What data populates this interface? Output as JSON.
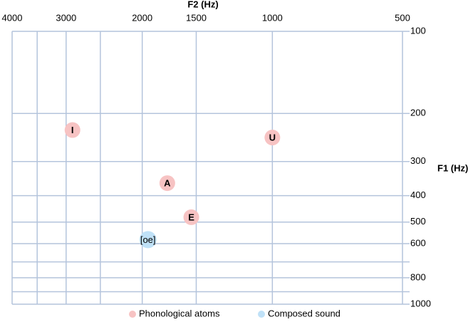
{
  "chart_data": {
    "type": "scatter",
    "x_label": "F2 (Hz)",
    "y_label": "F1 (Hz)",
    "x_log": true,
    "y_log": true,
    "x_reversed": true,
    "y_reversed": true,
    "xlim": [
      4000,
      500
    ],
    "ylim": [
      100,
      1000
    ],
    "xticks": [
      4000,
      3000,
      2000,
      1500,
      1000,
      500
    ],
    "x_minor_ticks": [
      3500,
      2500
    ],
    "yticks": [
      100,
      200,
      300,
      400,
      500,
      600,
      800,
      1000
    ],
    "y_minor_ticks": [
      700,
      900
    ],
    "grid": true,
    "legend": "bottom",
    "series": [
      {
        "name": "Phonological atoms",
        "color": "#f7c3c3",
        "x": [
          2900,
          1000,
          1750,
          1540
        ],
        "values": [
          230,
          245,
          360,
          480
        ],
        "point_labels": [
          "I",
          "U",
          "A",
          "E"
        ]
      },
      {
        "name": "Composed sound",
        "color": "#bfe1f7",
        "x": [
          1940
        ],
        "values": [
          580
        ],
        "point_labels": [
          "[oe]"
        ]
      }
    ]
  }
}
